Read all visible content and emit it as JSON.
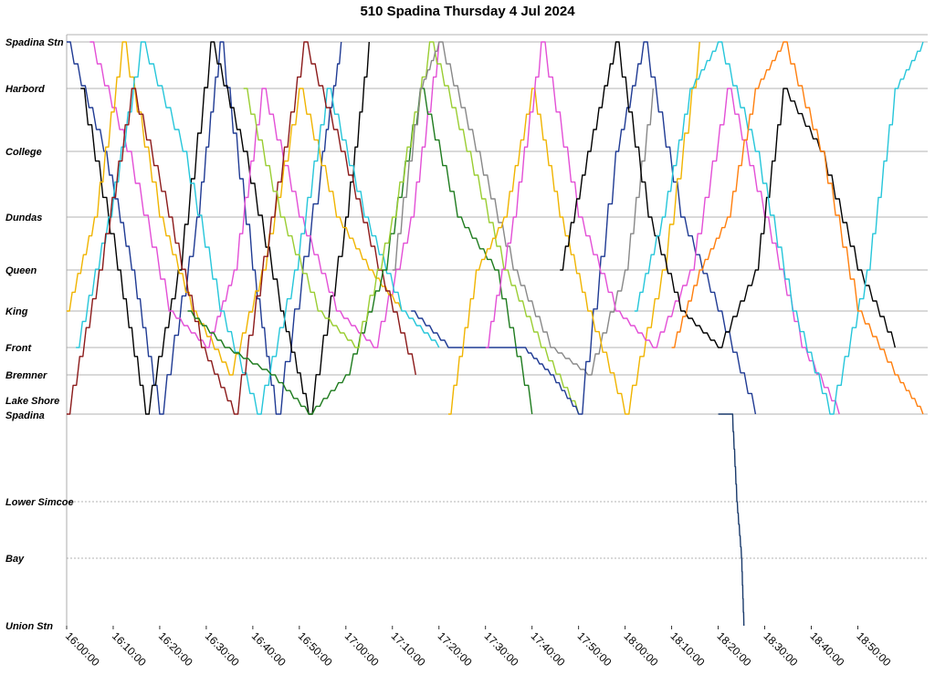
{
  "chart_data": {
    "type": "line",
    "title": "510 Spadina Thursday 4 Jul 2024",
    "xlabel": "",
    "ylabel": "",
    "x_range": [
      "16:00:00",
      "19:05:00"
    ],
    "x_ticks": [
      "16:00:00",
      "16:10:00",
      "16:20:00",
      "16:30:00",
      "16:40:00",
      "16:50:00",
      "17:00:00",
      "17:10:00",
      "17:20:00",
      "17:30:00",
      "17:40:00",
      "17:50:00",
      "18:00:00",
      "18:10:00",
      "18:20:00",
      "18:30:00",
      "18:40:00",
      "18:50:00"
    ],
    "stops": [
      "Spadina Stn",
      "Harbord",
      "College",
      "Dundas",
      "Queen",
      "King",
      "Front",
      "Bremner",
      "Lake Shore Spadina",
      "Lower Simcoe",
      "Bay",
      "Union Stn"
    ],
    "grid": true,
    "legend": "none",
    "series": [
      {
        "color": "#1f3a93",
        "points": [
          [
            "16:00:00",
            "Spadina Stn"
          ],
          [
            "16:08:00",
            "College"
          ],
          [
            "16:14:00",
            "Queen"
          ],
          [
            "16:20:00",
            "Lake Shore Spadina"
          ],
          [
            "16:28:00",
            "Dundas"
          ],
          [
            "16:33:00",
            "Spadina Stn"
          ],
          [
            "16:40:00",
            "Queen"
          ],
          [
            "16:45:00",
            "Lake Shore Spadina"
          ],
          [
            "16:55:00",
            "College"
          ],
          [
            "16:59:00",
            "Spadina Stn"
          ]
        ]
      },
      {
        "color": "#000000",
        "points": [
          [
            "16:03:00",
            "Harbord"
          ],
          [
            "16:11:00",
            "Queen"
          ],
          [
            "16:17:00",
            "Lake Shore Spadina"
          ],
          [
            "16:24:00",
            "Queen"
          ],
          [
            "16:31:00",
            "Spadina Stn"
          ],
          [
            "16:38:00",
            "College"
          ],
          [
            "16:46:00",
            "King"
          ],
          [
            "16:52:00",
            "Lake Shore Spadina"
          ],
          [
            "17:00:00",
            "Dundas"
          ],
          [
            "17:05:00",
            "Spadina Stn"
          ]
        ]
      },
      {
        "color": "#e34fd6",
        "points": [
          [
            "16:05:00",
            "Spadina Stn"
          ],
          [
            "16:13:00",
            "College"
          ],
          [
            "16:22:00",
            "King"
          ],
          [
            "16:30:00",
            "Front"
          ],
          [
            "16:36:00",
            "Queen"
          ],
          [
            "16:42:00",
            "Harbord"
          ],
          [
            "16:50:00",
            "Dundas"
          ],
          [
            "16:58:00",
            "King"
          ],
          [
            "17:06:00",
            "Front"
          ],
          [
            "17:14:00",
            "Dundas"
          ],
          [
            "17:20:00",
            "Spadina Stn"
          ]
        ]
      },
      {
        "color": "#f0b400",
        "points": [
          [
            "16:00:00",
            "King"
          ],
          [
            "16:06:00",
            "Dundas"
          ],
          [
            "16:12:00",
            "Spadina Stn"
          ],
          [
            "16:20:00",
            "Dundas"
          ],
          [
            "16:27:00",
            "King"
          ],
          [
            "16:35:00",
            "Bremner"
          ],
          [
            "16:42:00",
            "Queen"
          ],
          [
            "16:50:00",
            "Harbord"
          ],
          [
            "16:58:00",
            "Dundas"
          ],
          [
            "17:05:00",
            "Queen"
          ],
          [
            "17:12:00",
            "King"
          ]
        ]
      },
      {
        "color": "#26c6da",
        "points": [
          [
            "16:02:00",
            "Front"
          ],
          [
            "16:09:00",
            "Dundas"
          ],
          [
            "16:16:00",
            "Spadina Stn"
          ],
          [
            "16:25:00",
            "College"
          ],
          [
            "16:33:00",
            "King"
          ],
          [
            "16:41:00",
            "Lake Shore Spadina"
          ],
          [
            "16:49:00",
            "Queen"
          ],
          [
            "16:56:00",
            "Harbord"
          ],
          [
            "17:04:00",
            "Dundas"
          ],
          [
            "17:12:00",
            "King"
          ],
          [
            "17:20:00",
            "Front"
          ]
        ]
      },
      {
        "color": "#8b1a1a",
        "points": [
          [
            "16:00:00",
            "Lake Shore Spadina"
          ],
          [
            "16:07:00",
            "Queen"
          ],
          [
            "16:14:00",
            "Harbord"
          ],
          [
            "16:22:00",
            "Dundas"
          ],
          [
            "16:29:00",
            "Front"
          ],
          [
            "16:36:00",
            "Lake Shore Spadina"
          ],
          [
            "16:44:00",
            "Dundas"
          ],
          [
            "16:51:00",
            "Spadina Stn"
          ],
          [
            "16:59:00",
            "College"
          ],
          [
            "17:07:00",
            "Queen"
          ],
          [
            "17:15:00",
            "Bremner"
          ]
        ]
      },
      {
        "color": "#1e7b1e",
        "points": [
          [
            "16:26:00",
            "King"
          ],
          [
            "16:34:00",
            "Front"
          ],
          [
            "16:44:00",
            "Bremner"
          ],
          [
            "16:52:00",
            "Lake Shore Spadina"
          ],
          [
            "17:00:00",
            "Bremner"
          ],
          [
            "17:08:00",
            "Queen"
          ],
          [
            "17:16:00",
            "Harbord"
          ],
          [
            "17:24:00",
            "Dundas"
          ],
          [
            "17:32:00",
            "Queen"
          ],
          [
            "17:40:00",
            "Lake Shore Spadina"
          ]
        ]
      },
      {
        "color": "#9acd32",
        "points": [
          [
            "16:38:00",
            "Harbord"
          ],
          [
            "16:46:00",
            "Dundas"
          ],
          [
            "16:54:00",
            "King"
          ],
          [
            "17:02:00",
            "Front"
          ],
          [
            "17:10:00",
            "Dundas"
          ],
          [
            "17:18:00",
            "Spadina Stn"
          ],
          [
            "17:26:00",
            "College"
          ],
          [
            "17:34:00",
            "Queen"
          ],
          [
            "17:42:00",
            "Front"
          ],
          [
            "17:50:00",
            "Lake Shore Spadina"
          ]
        ]
      },
      {
        "color": "#888888",
        "points": [
          [
            "17:10:00",
            "Queen"
          ],
          [
            "17:16:00",
            "Harbord"
          ],
          [
            "17:20:00",
            "Spadina Stn"
          ],
          [
            "17:28:00",
            "College"
          ],
          [
            "17:36:00",
            "Queen"
          ],
          [
            "17:44:00",
            "Front"
          ],
          [
            "17:52:00",
            "Bremner"
          ],
          [
            "18:00:00",
            "Queen"
          ],
          [
            "18:06:00",
            "Harbord"
          ]
        ]
      },
      {
        "color": "#1f3a93",
        "points": [
          [
            "17:14:00",
            "King"
          ],
          [
            "17:22:00",
            "Front"
          ],
          [
            "17:30:00",
            "Front"
          ],
          [
            "17:38:00",
            "Front"
          ],
          [
            "17:44:00",
            "Bremner"
          ],
          [
            "17:50:00",
            "Lake Shore Spadina"
          ],
          [
            "17:58:00",
            "College"
          ],
          [
            "18:04:00",
            "Spadina Stn"
          ],
          [
            "18:12:00",
            "Dundas"
          ],
          [
            "18:20:00",
            "King"
          ],
          [
            "18:28:00",
            "Lake Shore Spadina"
          ]
        ]
      },
      {
        "color": "#f0b400",
        "points": [
          [
            "17:22:00",
            "Lake Shore Spadina"
          ],
          [
            "17:28:00",
            "Queen"
          ],
          [
            "17:34:00",
            "Dundas"
          ],
          [
            "17:40:00",
            "Harbord"
          ],
          [
            "17:46:00",
            "Dundas"
          ],
          [
            "17:52:00",
            "King"
          ],
          [
            "18:00:00",
            "Lake Shore Spadina"
          ],
          [
            "18:08:00",
            "Queen"
          ],
          [
            "18:16:00",
            "Spadina Stn"
          ]
        ]
      },
      {
        "color": "#e34fd6",
        "points": [
          [
            "17:30:00",
            "Front"
          ],
          [
            "17:36:00",
            "Dundas"
          ],
          [
            "17:42:00",
            "Spadina Stn"
          ],
          [
            "17:50:00",
            "Dundas"
          ],
          [
            "17:58:00",
            "King"
          ],
          [
            "18:06:00",
            "Front"
          ],
          [
            "18:14:00",
            "Queen"
          ],
          [
            "18:22:00",
            "Harbord"
          ],
          [
            "18:30:00",
            "Dundas"
          ],
          [
            "18:38:00",
            "Front"
          ],
          [
            "18:46:00",
            "Lake Shore Spadina"
          ]
        ]
      },
      {
        "color": "#000000",
        "points": [
          [
            "17:46:00",
            "Queen"
          ],
          [
            "17:52:00",
            "College"
          ],
          [
            "17:58:00",
            "Spadina Stn"
          ],
          [
            "18:05:00",
            "Dundas"
          ],
          [
            "18:12:00",
            "King"
          ],
          [
            "18:20:00",
            "Front"
          ],
          [
            "18:28:00",
            "Queen"
          ],
          [
            "18:34:00",
            "Harbord"
          ],
          [
            "18:42:00",
            "College"
          ],
          [
            "18:50:00",
            "Queen"
          ],
          [
            "18:58:00",
            "Front"
          ]
        ]
      },
      {
        "color": "#26c6da",
        "points": [
          [
            "18:02:00",
            "King"
          ],
          [
            "18:08:00",
            "Dundas"
          ],
          [
            "18:14:00",
            "Harbord"
          ],
          [
            "18:20:00",
            "Spadina Stn"
          ],
          [
            "18:28:00",
            "College"
          ],
          [
            "18:36:00",
            "King"
          ],
          [
            "18:44:00",
            "Lake Shore Spadina"
          ],
          [
            "18:52:00",
            "Queen"
          ],
          [
            "18:58:00",
            "Harbord"
          ],
          [
            "19:04:00",
            "Spadina Stn"
          ]
        ]
      },
      {
        "color": "#ff7f0e",
        "points": [
          [
            "18:10:00",
            "Front"
          ],
          [
            "18:16:00",
            "Queen"
          ],
          [
            "18:22:00",
            "Dundas"
          ],
          [
            "18:28:00",
            "Harbord"
          ],
          [
            "18:34:00",
            "Spadina Stn"
          ],
          [
            "18:42:00",
            "College"
          ],
          [
            "18:50:00",
            "King"
          ],
          [
            "18:58:00",
            "Bremner"
          ],
          [
            "19:04:00",
            "Lake Shore Spadina"
          ]
        ]
      },
      {
        "color": "#1a3a6b",
        "points": [
          [
            "18:20:00",
            "Lake Shore Spadina"
          ],
          [
            "18:22:00",
            "Lake Shore Spadina"
          ],
          [
            "18:23:00",
            "Lake Shore Spadina"
          ],
          [
            "18:24:00",
            "Lower Simcoe"
          ],
          [
            "18:25:00",
            "Bay"
          ],
          [
            "18:25:30",
            "Union Stn"
          ]
        ]
      }
    ]
  }
}
